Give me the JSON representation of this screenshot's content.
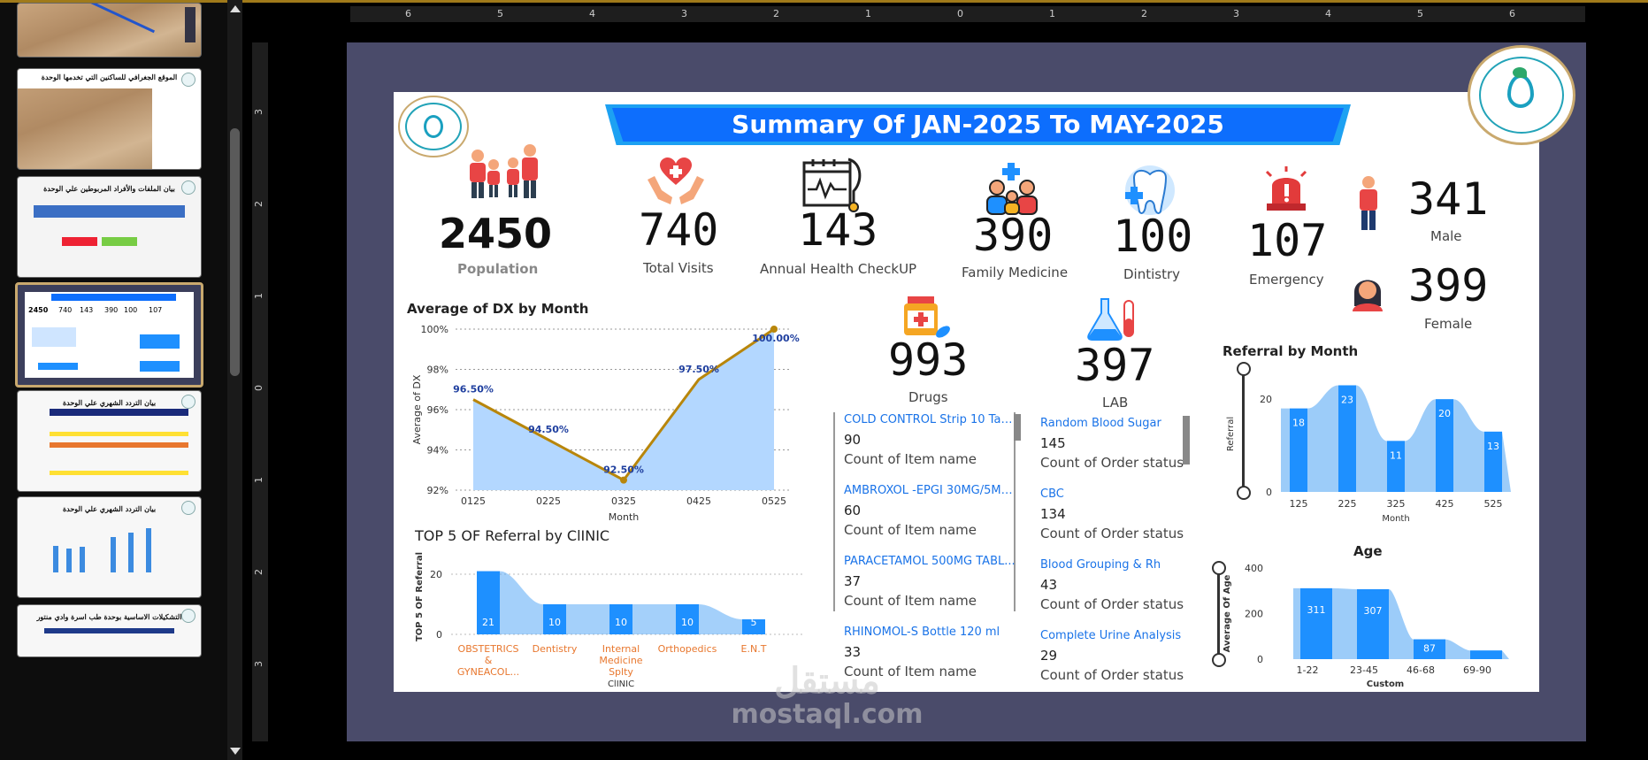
{
  "ruler": {
    "h": [
      "6",
      "5",
      "4",
      "3",
      "2",
      "1",
      "0",
      "1",
      "2",
      "3",
      "4",
      "5",
      "6"
    ],
    "v": [
      "3",
      "2",
      "1",
      "0",
      "1",
      "2",
      "3"
    ]
  },
  "thumbnails": [
    {
      "title": ""
    },
    {
      "title": "الموقع الجغرافي للساكنين التي تخدمها الوحدة"
    },
    {
      "title": "بيان الملفات والأفراد المربوطين علي الوحدة"
    },
    {
      "title": "Summary Of JAN-2025 To MAY-2025"
    },
    {
      "title": "بيان التردد الشهري علي الوحدة"
    },
    {
      "title": "بيان التردد الشهري علي الوحدة"
    },
    {
      "title": "التشكيلات الاساسية بوحدة طب اسرة وادي منتور"
    }
  ],
  "dashboard": {
    "title": "Summary Of JAN-2025 To MAY-2025",
    "kpis": {
      "population": {
        "value": "2450",
        "label": "Population"
      },
      "visits": {
        "value": "740",
        "label": "Total Visits"
      },
      "checkup": {
        "value": "143",
        "label": "Annual Health CheckUP"
      },
      "family": {
        "value": "390",
        "label": "Family Medicine"
      },
      "dentistry": {
        "value": "100",
        "label": "Dintistry"
      },
      "emergency": {
        "value": "107",
        "label": "Emergency"
      },
      "male": {
        "value": "341",
        "label": "Male"
      },
      "female": {
        "value": "399",
        "label": "Female"
      },
      "drugs": {
        "value": "993",
        "label": "Drugs"
      },
      "lab": {
        "value": "397",
        "label": "LAB"
      }
    },
    "drug_list": [
      {
        "name": "COLD CONTROL Strip 10 Tabl...",
        "value": "90",
        "caption": "Count of Item name"
      },
      {
        "name": "AMBROXOL -EPGI 30MG/5ML...",
        "value": "60",
        "caption": "Count of Item name"
      },
      {
        "name": "PARACETAMOL 500MG TABL...",
        "value": "37",
        "caption": "Count of Item name"
      },
      {
        "name": "RHINOMOL-S Bottle 120 ml",
        "value": "33",
        "caption": "Count of Item name"
      }
    ],
    "lab_list": [
      {
        "name": "Random Blood Sugar",
        "value": "145",
        "caption": "Count of Order status"
      },
      {
        "name": "CBC",
        "value": "134",
        "caption": "Count of Order status"
      },
      {
        "name": "Blood Grouping & Rh",
        "value": "43",
        "caption": "Count of Order status"
      },
      {
        "name": "Complete Urine Analysis",
        "value": "29",
        "caption": "Count of Order status"
      }
    ]
  },
  "watermark": {
    "arabic": "مستقل",
    "latin": "mostaql.com"
  },
  "colors": {
    "accent": "#0d6efd",
    "bar": "#1e90ff",
    "area": "#b3d7ff",
    "line": "#b8860b"
  },
  "chart_data": [
    {
      "type": "line",
      "title": "Average of DX by Month",
      "xlabel": "Month",
      "ylabel": "Average of DX",
      "categories": [
        "0125",
        "0225",
        "0325",
        "0425",
        "0525"
      ],
      "values": [
        96.5,
        94.5,
        92.5,
        97.5,
        100.0
      ],
      "labels": [
        "96.50%",
        "94.50%",
        "92.50%",
        "97.50%",
        "100.00%"
      ],
      "yticks": [
        "92%",
        "94%",
        "96%",
        "98%",
        "100%"
      ],
      "ylim": [
        92,
        100
      ]
    },
    {
      "type": "bar",
      "title": "TOP 5 OF Referral by ClINIC",
      "ylabel": "TOP 5 OF Referral",
      "categories": [
        [
          "OBSTETRICS",
          "&",
          "GYNEACOL..."
        ],
        [
          "Dentistry"
        ],
        [
          "Internal",
          "Medicine",
          "Splty"
        ],
        [
          "Orthopedics"
        ],
        [
          "E.N.T"
        ]
      ],
      "values": [
        21,
        10,
        10,
        10,
        5
      ],
      "extra_xlabel": "ClINIC",
      "yticks": [
        "0",
        "20"
      ],
      "ylim": [
        0,
        25
      ]
    },
    {
      "type": "bar",
      "title": "Referral by Month",
      "xlabel": "Month",
      "ylabel": "Referral",
      "categories": [
        "125",
        "225",
        "325",
        "425",
        "525"
      ],
      "values": [
        18,
        23,
        11,
        20,
        13
      ],
      "yticks": [
        "0",
        "20"
      ],
      "ylim": [
        0,
        25
      ]
    },
    {
      "type": "bar",
      "title": "Age",
      "xlabel": "Custom",
      "ylabel": "Average Of Age",
      "categories": [
        "1-22",
        "23-45",
        "46-68",
        "69-90"
      ],
      "values": [
        311,
        307,
        87,
        38
      ],
      "labels": [
        "311",
        "307",
        "87",
        ""
      ],
      "yticks": [
        "0",
        "200",
        "400"
      ],
      "ylim": [
        0,
        400
      ]
    }
  ]
}
